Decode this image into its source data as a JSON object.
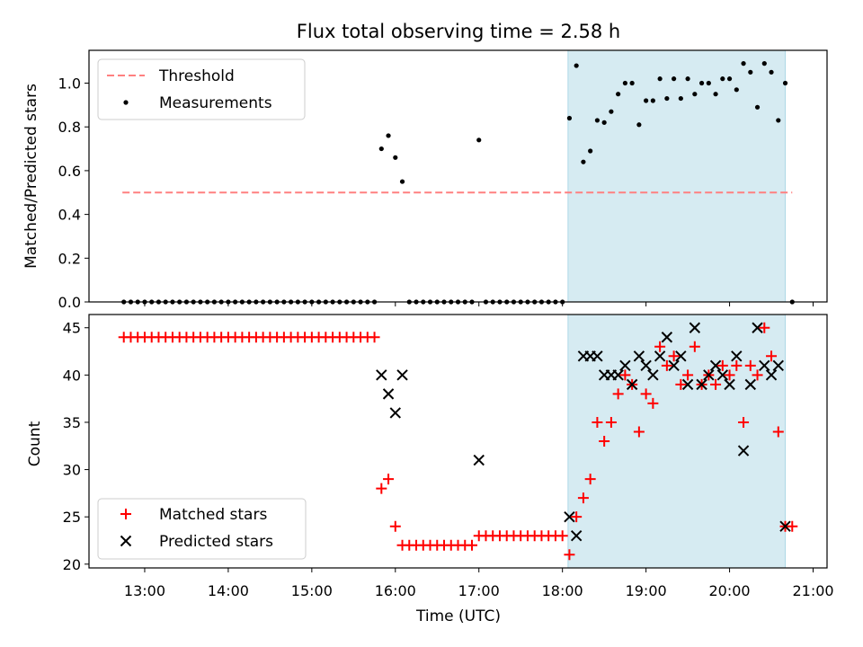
{
  "title": "Flux total observing time = 2.58 h",
  "colors": {
    "threshold": "#ff8080",
    "measurement": "#000000",
    "matched": "#ff0000",
    "predicted": "#000000",
    "span": "#add8e6"
  },
  "chart_data": [
    {
      "type": "scatter",
      "panel": "top",
      "ylabel": "Matched/Predicted stars",
      "xlabel": "",
      "ylim": [
        0,
        1.15
      ],
      "yticks": [
        "0.0",
        "0.2",
        "0.4",
        "0.6",
        "0.8",
        "1.0"
      ],
      "threshold": {
        "label": "Threshold",
        "value": 0.5,
        "x_range": [
          "12:44",
          "20:45"
        ]
      },
      "highlight_span": [
        "18:04",
        "20:40"
      ],
      "legend": {
        "position": "upper left",
        "entries": [
          "Threshold",
          "Measurements"
        ]
      },
      "series": [
        {
          "name": "Measurements",
          "points": [
            [
              "12:45",
              0
            ],
            [
              "12:50",
              0
            ],
            [
              "12:55",
              0
            ],
            [
              "13:00",
              0
            ],
            [
              "13:05",
              0
            ],
            [
              "13:10",
              0
            ],
            [
              "13:15",
              0
            ],
            [
              "13:20",
              0
            ],
            [
              "13:25",
              0
            ],
            [
              "13:30",
              0
            ],
            [
              "13:35",
              0
            ],
            [
              "13:40",
              0
            ],
            [
              "13:45",
              0
            ],
            [
              "13:50",
              0
            ],
            [
              "13:55",
              0
            ],
            [
              "14:00",
              0
            ],
            [
              "14:05",
              0
            ],
            [
              "14:10",
              0
            ],
            [
              "14:15",
              0
            ],
            [
              "14:20",
              0
            ],
            [
              "14:25",
              0
            ],
            [
              "14:30",
              0
            ],
            [
              "14:35",
              0
            ],
            [
              "14:40",
              0
            ],
            [
              "14:45",
              0
            ],
            [
              "14:50",
              0
            ],
            [
              "14:55",
              0
            ],
            [
              "15:00",
              0
            ],
            [
              "15:05",
              0
            ],
            [
              "15:10",
              0
            ],
            [
              "15:15",
              0
            ],
            [
              "15:20",
              0
            ],
            [
              "15:25",
              0
            ],
            [
              "15:30",
              0
            ],
            [
              "15:35",
              0
            ],
            [
              "15:40",
              0
            ],
            [
              "15:45",
              0
            ],
            [
              "15:50",
              0.7
            ],
            [
              "15:55",
              0.76
            ],
            [
              "16:00",
              0.66
            ],
            [
              "16:05",
              0.55
            ],
            [
              "16:10",
              0
            ],
            [
              "16:15",
              0
            ],
            [
              "16:20",
              0
            ],
            [
              "16:25",
              0
            ],
            [
              "16:30",
              0
            ],
            [
              "16:35",
              0
            ],
            [
              "16:40",
              0
            ],
            [
              "16:45",
              0
            ],
            [
              "16:50",
              0
            ],
            [
              "16:55",
              0
            ],
            [
              "17:00",
              0.74
            ],
            [
              "17:05",
              0
            ],
            [
              "17:10",
              0
            ],
            [
              "17:15",
              0
            ],
            [
              "17:20",
              0
            ],
            [
              "17:25",
              0
            ],
            [
              "17:30",
              0
            ],
            [
              "17:35",
              0
            ],
            [
              "17:40",
              0
            ],
            [
              "17:45",
              0
            ],
            [
              "17:50",
              0
            ],
            [
              "17:55",
              0
            ],
            [
              "18:00",
              0
            ],
            [
              "18:05",
              0.84
            ],
            [
              "18:10",
              1.08
            ],
            [
              "18:15",
              0.64
            ],
            [
              "18:20",
              0.69
            ],
            [
              "18:25",
              0.83
            ],
            [
              "18:30",
              0.82
            ],
            [
              "18:35",
              0.87
            ],
            [
              "18:40",
              0.95
            ],
            [
              "18:45",
              1.0
            ],
            [
              "18:50",
              1.0
            ],
            [
              "18:55",
              0.81
            ],
            [
              "19:00",
              0.92
            ],
            [
              "19:05",
              0.92
            ],
            [
              "19:10",
              1.02
            ],
            [
              "19:15",
              0.93
            ],
            [
              "19:20",
              1.02
            ],
            [
              "19:25",
              0.93
            ],
            [
              "19:30",
              1.02
            ],
            [
              "19:35",
              0.95
            ],
            [
              "19:40",
              1.0
            ],
            [
              "19:45",
              1.0
            ],
            [
              "19:50",
              0.95
            ],
            [
              "19:55",
              1.02
            ],
            [
              "20:00",
              1.02
            ],
            [
              "20:05",
              0.97
            ],
            [
              "20:10",
              1.09
            ],
            [
              "20:15",
              1.05
            ],
            [
              "20:20",
              0.89
            ],
            [
              "20:25",
              1.09
            ],
            [
              "20:30",
              1.05
            ],
            [
              "20:35",
              0.83
            ],
            [
              "20:40",
              1.0
            ],
            [
              "20:45",
              0
            ]
          ]
        }
      ]
    },
    {
      "type": "scatter",
      "panel": "bottom",
      "ylabel": "Count",
      "xlabel": "Time (UTC)",
      "ylim": [
        19.6,
        46.4
      ],
      "yticks": [
        "20",
        "25",
        "30",
        "35",
        "40",
        "45"
      ],
      "xlim": [
        "12:20",
        "21:10"
      ],
      "xticks": [
        "13:00",
        "14:00",
        "15:00",
        "16:00",
        "17:00",
        "18:00",
        "19:00",
        "20:00",
        "21:00"
      ],
      "highlight_span": [
        "18:04",
        "20:40"
      ],
      "legend": {
        "position": "lower left",
        "entries": [
          "Matched stars",
          "Predicted stars"
        ]
      },
      "series": [
        {
          "name": "Matched stars",
          "marker": "+",
          "points": [
            [
              "12:45",
              44
            ],
            [
              "12:50",
              44
            ],
            [
              "12:55",
              44
            ],
            [
              "13:00",
              44
            ],
            [
              "13:05",
              44
            ],
            [
              "13:10",
              44
            ],
            [
              "13:15",
              44
            ],
            [
              "13:20",
              44
            ],
            [
              "13:25",
              44
            ],
            [
              "13:30",
              44
            ],
            [
              "13:35",
              44
            ],
            [
              "13:40",
              44
            ],
            [
              "13:45",
              44
            ],
            [
              "13:50",
              44
            ],
            [
              "13:55",
              44
            ],
            [
              "14:00",
              44
            ],
            [
              "14:05",
              44
            ],
            [
              "14:10",
              44
            ],
            [
              "14:15",
              44
            ],
            [
              "14:20",
              44
            ],
            [
              "14:25",
              44
            ],
            [
              "14:30",
              44
            ],
            [
              "14:35",
              44
            ],
            [
              "14:40",
              44
            ],
            [
              "14:45",
              44
            ],
            [
              "14:50",
              44
            ],
            [
              "14:55",
              44
            ],
            [
              "15:00",
              44
            ],
            [
              "15:05",
              44
            ],
            [
              "15:10",
              44
            ],
            [
              "15:15",
              44
            ],
            [
              "15:20",
              44
            ],
            [
              "15:25",
              44
            ],
            [
              "15:30",
              44
            ],
            [
              "15:35",
              44
            ],
            [
              "15:40",
              44
            ],
            [
              "15:45",
              44
            ],
            [
              "15:50",
              28
            ],
            [
              "15:55",
              29
            ],
            [
              "16:00",
              24
            ],
            [
              "16:05",
              22
            ],
            [
              "16:10",
              22
            ],
            [
              "16:15",
              22
            ],
            [
              "16:20",
              22
            ],
            [
              "16:25",
              22
            ],
            [
              "16:30",
              22
            ],
            [
              "16:35",
              22
            ],
            [
              "16:40",
              22
            ],
            [
              "16:45",
              22
            ],
            [
              "16:50",
              22
            ],
            [
              "16:55",
              22
            ],
            [
              "17:00",
              23
            ],
            [
              "17:05",
              23
            ],
            [
              "17:10",
              23
            ],
            [
              "17:15",
              23
            ],
            [
              "17:20",
              23
            ],
            [
              "17:25",
              23
            ],
            [
              "17:30",
              23
            ],
            [
              "17:35",
              23
            ],
            [
              "17:40",
              23
            ],
            [
              "17:45",
              23
            ],
            [
              "17:50",
              23
            ],
            [
              "17:55",
              23
            ],
            [
              "18:00",
              23
            ],
            [
              "18:05",
              21
            ],
            [
              "18:10",
              25
            ],
            [
              "18:15",
              27
            ],
            [
              "18:20",
              29
            ],
            [
              "18:25",
              35
            ],
            [
              "18:30",
              33
            ],
            [
              "18:35",
              35
            ],
            [
              "18:40",
              38
            ],
            [
              "18:45",
              40
            ],
            [
              "18:50",
              39
            ],
            [
              "18:55",
              34
            ],
            [
              "19:00",
              38
            ],
            [
              "19:05",
              37
            ],
            [
              "19:10",
              43
            ],
            [
              "19:15",
              41
            ],
            [
              "19:20",
              42
            ],
            [
              "19:25",
              39
            ],
            [
              "19:30",
              40
            ],
            [
              "19:35",
              43
            ],
            [
              "19:40",
              39
            ],
            [
              "19:45",
              40
            ],
            [
              "19:50",
              39
            ],
            [
              "19:55",
              41
            ],
            [
              "20:00",
              40
            ],
            [
              "20:05",
              41
            ],
            [
              "20:10",
              35
            ],
            [
              "20:15",
              41
            ],
            [
              "20:20",
              40
            ],
            [
              "20:25",
              45
            ],
            [
              "20:30",
              42
            ],
            [
              "20:35",
              34
            ],
            [
              "20:40",
              24
            ],
            [
              "20:45",
              24
            ]
          ]
        },
        {
          "name": "Predicted stars",
          "marker": "x",
          "points": [
            [
              "15:50",
              40
            ],
            [
              "15:55",
              38
            ],
            [
              "16:00",
              36
            ],
            [
              "16:05",
              40
            ],
            [
              "17:00",
              31
            ],
            [
              "18:05",
              25
            ],
            [
              "18:10",
              23
            ],
            [
              "18:15",
              42
            ],
            [
              "18:20",
              42
            ],
            [
              "18:25",
              42
            ],
            [
              "18:30",
              40
            ],
            [
              "18:35",
              40
            ],
            [
              "18:40",
              40
            ],
            [
              "18:45",
              41
            ],
            [
              "18:50",
              39
            ],
            [
              "18:55",
              42
            ],
            [
              "19:00",
              41
            ],
            [
              "19:05",
              40
            ],
            [
              "19:10",
              42
            ],
            [
              "19:15",
              44
            ],
            [
              "19:20",
              41
            ],
            [
              "19:25",
              42
            ],
            [
              "19:30",
              39
            ],
            [
              "19:35",
              45
            ],
            [
              "19:40",
              39
            ],
            [
              "19:45",
              40
            ],
            [
              "19:50",
              41
            ],
            [
              "19:55",
              40
            ],
            [
              "20:00",
              39
            ],
            [
              "20:05",
              42
            ],
            [
              "20:10",
              32
            ],
            [
              "20:15",
              39
            ],
            [
              "20:20",
              45
            ],
            [
              "20:25",
              41
            ],
            [
              "20:30",
              40
            ],
            [
              "20:35",
              41
            ],
            [
              "20:40",
              24
            ]
          ]
        }
      ]
    }
  ]
}
